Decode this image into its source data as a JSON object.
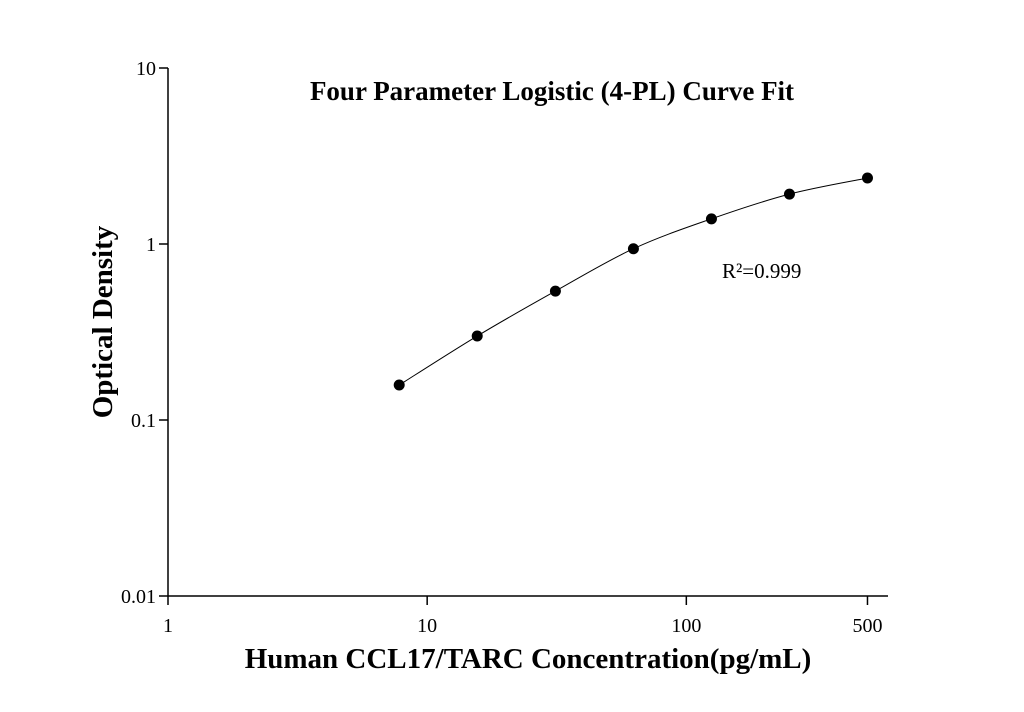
{
  "chart_data": {
    "type": "scatter",
    "title": "Four Parameter Logistic (4-PL) Curve Fit",
    "x_label": "Human CCL17/TARC Concentration(pg/mL)",
    "y_label": "Optical Density",
    "annotation": "R²=0.999",
    "x_log": true,
    "y_log": true,
    "xlim": [
      1,
      600
    ],
    "ylim": [
      0.01,
      10
    ],
    "xticks": [
      1,
      10,
      100,
      500
    ],
    "yticks": [
      0.01,
      0.1,
      1,
      10
    ],
    "x": [
      7.8,
      15.6,
      31.25,
      62.5,
      125,
      250,
      500
    ],
    "series": [
      {
        "color": "#000000",
        "values": [
          0.158,
          0.3,
          0.54,
          0.94,
          1.39,
          1.92,
          2.37
        ]
      }
    ]
  }
}
